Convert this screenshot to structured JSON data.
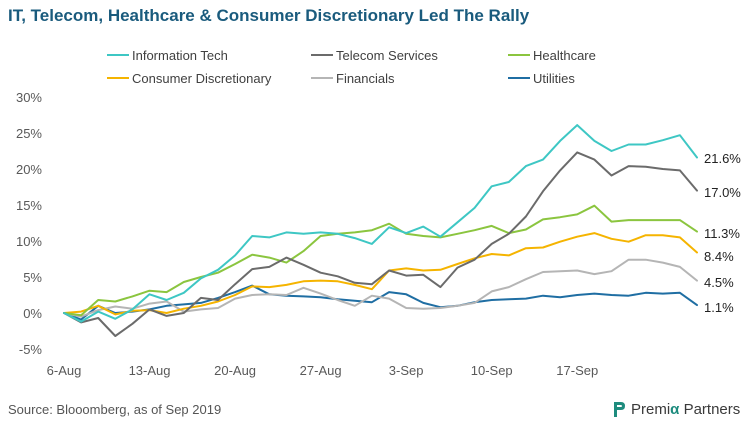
{
  "title": "IT, Telecom, Healthcare & Consumer Discretionary Led The Rally",
  "source": "Source: Blooomberg, as of Sep 2019",
  "brand": {
    "name_part1": "Premi",
    "name_mark": "α",
    "name_part2": " Partners"
  },
  "chart_data": {
    "type": "line",
    "title": "IT, Telecom, Healthcare & Consumer Discretionary Led The Rally",
    "xlabel": "",
    "ylabel": "",
    "ylim": [
      -5,
      30
    ],
    "yticks": [
      "-5%",
      "0%",
      "5%",
      "10%",
      "15%",
      "20%",
      "25%",
      "30%"
    ],
    "ytick_values": [
      -5,
      0,
      5,
      10,
      15,
      20,
      25,
      30
    ],
    "xticks": [
      "6-Aug",
      "13-Aug",
      "20-Aug",
      "27-Aug",
      "3-Sep",
      "10-Sep",
      "17-Sep"
    ],
    "xtick_index": [
      0,
      5,
      10,
      15,
      20,
      25,
      30
    ],
    "grid": false,
    "legend_position": "top",
    "series": [
      {
        "name": "Information Tech",
        "color": "#3ec7c4",
        "end_label": "21.6%",
        "values": [
          0,
          -1.2,
          0.2,
          -0.8,
          0.5,
          2.6,
          1.8,
          2.8,
          4.8,
          6.0,
          8.0,
          10.7,
          10.5,
          11.2,
          11.0,
          11.2,
          11.0,
          10.4,
          9.6,
          11.9,
          11.1,
          12.0,
          10.6,
          12.6,
          14.6,
          17.6,
          18.2,
          20.4,
          21.3,
          23.9,
          26.1,
          23.9,
          22.5,
          23.4,
          23.4,
          24.0,
          24.7,
          21.6
        ]
      },
      {
        "name": "Telecom Services",
        "color": "#6b6b6b",
        "end_label": "17.0%",
        "values": [
          0,
          -1.3,
          -0.7,
          -3.2,
          -1.5,
          0.5,
          -0.4,
          0.0,
          2.1,
          1.8,
          4.0,
          6.1,
          6.4,
          7.7,
          6.7,
          5.6,
          5.1,
          4.2,
          4.0,
          5.9,
          5.2,
          5.3,
          3.6,
          6.3,
          7.4,
          9.6,
          11.0,
          13.4,
          16.9,
          19.8,
          22.3,
          21.3,
          19.1,
          20.4,
          20.3,
          20.0,
          19.8,
          17.0
        ]
      },
      {
        "name": "Healthcare",
        "color": "#8bc53f",
        "end_label": "11.3%",
        "values": [
          0,
          -0.3,
          1.8,
          1.6,
          2.3,
          3.1,
          2.9,
          4.3,
          5.0,
          5.6,
          6.8,
          8.1,
          7.7,
          7.0,
          8.6,
          10.7,
          11.0,
          11.2,
          11.5,
          12.4,
          11.0,
          10.7,
          10.5,
          11.0,
          11.5,
          12.1,
          11.1,
          11.6,
          13.0,
          13.3,
          13.7,
          14.9,
          12.7,
          12.9,
          12.9,
          12.9,
          12.9,
          11.3
        ]
      },
      {
        "name": "Consumer Discretionary",
        "color": "#f5b400",
        "end_label": "8.4%",
        "values": [
          0,
          0.2,
          1.0,
          -0.2,
          0.3,
          0.4,
          0.0,
          0.6,
          1.0,
          1.6,
          2.5,
          3.7,
          3.6,
          3.9,
          4.4,
          4.5,
          4.4,
          3.9,
          3.3,
          5.9,
          6.2,
          5.9,
          6.0,
          6.8,
          7.6,
          8.2,
          8.0,
          9.0,
          9.1,
          9.9,
          10.6,
          11.1,
          10.3,
          9.9,
          10.8,
          10.8,
          10.5,
          8.4
        ]
      },
      {
        "name": "Financials",
        "color": "#b5b5b5",
        "end_label": "4.5%",
        "values": [
          0,
          -0.5,
          0.4,
          0.9,
          0.6,
          1.3,
          1.6,
          0.2,
          0.5,
          0.7,
          2.0,
          2.5,
          2.6,
          2.5,
          3.5,
          2.7,
          1.8,
          1.0,
          2.4,
          2.0,
          0.7,
          0.6,
          0.7,
          1.0,
          1.4,
          3.0,
          3.6,
          4.7,
          5.7,
          5.8,
          5.9,
          5.4,
          5.8,
          7.4,
          7.4,
          7.0,
          6.4,
          4.5
        ]
      },
      {
        "name": "Utilities",
        "color": "#1f6ea3",
        "end_label": "1.1%",
        "values": [
          0,
          -0.9,
          1.0,
          0.0,
          0.2,
          0.5,
          1.0,
          1.2,
          1.4,
          2.1,
          2.9,
          3.8,
          2.6,
          2.4,
          2.3,
          2.2,
          1.9,
          1.7,
          1.5,
          2.9,
          2.6,
          1.4,
          0.8,
          1.0,
          1.5,
          1.8,
          1.9,
          2.0,
          2.4,
          2.2,
          2.5,
          2.7,
          2.5,
          2.4,
          2.8,
          2.7,
          2.8,
          1.1
        ]
      }
    ]
  }
}
